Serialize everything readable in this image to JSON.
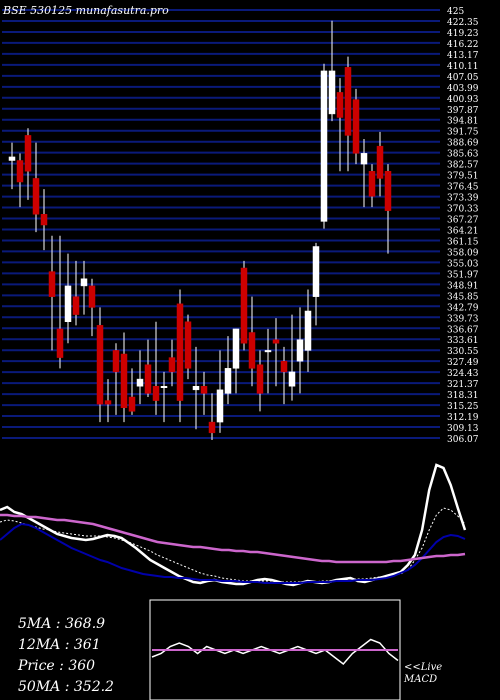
{
  "title": "BSE 530125 munafasutra.pro",
  "indicators": {
    "ma5": "5MA : 368.9",
    "ma12": "12MA : 361",
    "price": "Price   : 360",
    "ma50": "50MA : 352.2"
  },
  "macd_label": {
    "line1": "<<Live",
    "line2": "MACD"
  },
  "colors": {
    "up": "#ffffff",
    "down": "#cc0000",
    "grid": "#0a1a7a",
    "macd": "#0000aa",
    "ma_long": "#cc66cc"
  },
  "chart_data": [
    {
      "type": "candlestick",
      "title": "BSE 530125 munafasutra.pro",
      "ylim": [
        305,
        425
      ],
      "y_tick_labels": [
        "425",
        "422.35",
        "419.23",
        "416.22",
        "413.17",
        "410.11",
        "407.05",
        "403.99",
        "400.93",
        "397.87",
        "394.81",
        "391.75",
        "388.69",
        "385.63",
        "382.57",
        "379.51",
        "376.45",
        "373.39",
        "370.33",
        "367.27",
        "364.21",
        "361.15",
        "358.09",
        "355.03",
        "351.97",
        "348.91",
        "345.85",
        "342.79",
        "339.73",
        "336.67",
        "333.61",
        "330.55",
        "327.49",
        "324.43",
        "321.37",
        "318.31",
        "315.25",
        "312.19",
        "309.13",
        "306.07"
      ],
      "candles": [
        {
          "o": 383,
          "h": 388,
          "l": 375,
          "c": 384
        },
        {
          "o": 383,
          "h": 385,
          "l": 370,
          "c": 377
        },
        {
          "o": 390,
          "h": 392,
          "l": 372,
          "c": 380
        },
        {
          "o": 378,
          "h": 388,
          "l": 363,
          "c": 368
        },
        {
          "o": 368,
          "h": 375,
          "l": 358,
          "c": 365
        },
        {
          "o": 352,
          "h": 362,
          "l": 330,
          "c": 345
        },
        {
          "o": 336,
          "h": 362,
          "l": 325,
          "c": 328
        },
        {
          "o": 338,
          "h": 357,
          "l": 332,
          "c": 348
        },
        {
          "o": 345,
          "h": 355,
          "l": 337,
          "c": 340
        },
        {
          "o": 348,
          "h": 355,
          "l": 340,
          "c": 350
        },
        {
          "o": 348,
          "h": 350,
          "l": 334,
          "c": 342
        },
        {
          "o": 337,
          "h": 342,
          "l": 310,
          "c": 315
        },
        {
          "o": 316,
          "h": 322,
          "l": 310,
          "c": 315
        },
        {
          "o": 330,
          "h": 332,
          "l": 312,
          "c": 324
        },
        {
          "o": 329,
          "h": 335,
          "l": 310,
          "c": 314
        },
        {
          "o": 317,
          "h": 325,
          "l": 312,
          "c": 313
        },
        {
          "o": 320,
          "h": 330,
          "l": 315,
          "c": 322
        },
        {
          "o": 326,
          "h": 333,
          "l": 317,
          "c": 318
        },
        {
          "o": 320,
          "h": 338,
          "l": 312,
          "c": 316
        },
        {
          "o": 320,
          "h": 324,
          "l": 310,
          "c": 320
        },
        {
          "o": 328,
          "h": 333,
          "l": 320,
          "c": 324
        },
        {
          "o": 343,
          "h": 347,
          "l": 310,
          "c": 316
        },
        {
          "o": 338,
          "h": 340,
          "l": 322,
          "c": 325
        },
        {
          "o": 319,
          "h": 331,
          "l": 308,
          "c": 320
        },
        {
          "o": 320,
          "h": 324,
          "l": 312,
          "c": 318
        },
        {
          "o": 310,
          "h": 318,
          "l": 305,
          "c": 307
        },
        {
          "o": 310,
          "h": 330,
          "l": 307,
          "c": 319
        },
        {
          "o": 318,
          "h": 334,
          "l": 315,
          "c": 325
        },
        {
          "o": 325,
          "h": 336,
          "l": 318,
          "c": 336
        },
        {
          "o": 353,
          "h": 355,
          "l": 330,
          "c": 332
        },
        {
          "o": 335,
          "h": 345,
          "l": 320,
          "c": 325
        },
        {
          "o": 326,
          "h": 330,
          "l": 313,
          "c": 318
        },
        {
          "o": 330,
          "h": 336,
          "l": 318,
          "c": 330
        },
        {
          "o": 333,
          "h": 339,
          "l": 320,
          "c": 332
        },
        {
          "o": 327,
          "h": 331,
          "l": 315,
          "c": 324
        },
        {
          "o": 320,
          "h": 340,
          "l": 316,
          "c": 324
        },
        {
          "o": 327,
          "h": 342,
          "l": 318,
          "c": 333
        },
        {
          "o": 330,
          "h": 347,
          "l": 324,
          "c": 341
        },
        {
          "o": 345,
          "h": 360,
          "l": 337,
          "c": 359
        },
        {
          "o": 366,
          "h": 410,
          "l": 364,
          "c": 408
        },
        {
          "o": 396,
          "h": 422,
          "l": 394,
          "c": 408
        },
        {
          "o": 402,
          "h": 406,
          "l": 380,
          "c": 395
        },
        {
          "o": 409,
          "h": 412,
          "l": 380,
          "c": 390
        },
        {
          "o": 400,
          "h": 403,
          "l": 382,
          "c": 385
        },
        {
          "o": 382,
          "h": 389,
          "l": 370,
          "c": 385
        },
        {
          "o": 380,
          "h": 382,
          "l": 370,
          "c": 373
        },
        {
          "o": 387,
          "h": 391,
          "l": 373,
          "c": 378
        },
        {
          "o": 380,
          "h": 382,
          "l": 357,
          "c": 369
        }
      ]
    },
    {
      "type": "line",
      "title": "",
      "x": [
        0,
        1,
        2,
        3,
        4,
        5,
        6,
        7,
        8,
        9,
        10,
        11,
        12,
        13,
        14,
        15,
        16,
        17,
        18,
        19,
        20,
        21,
        22,
        23,
        24,
        25,
        26,
        27,
        28,
        29,
        30,
        31,
        32,
        33,
        34,
        35,
        36,
        37,
        38,
        39,
        40,
        41,
        42,
        43,
        44,
        45,
        46,
        47,
        48,
        49,
        50,
        51,
        52,
        53,
        54,
        55,
        56,
        57,
        58,
        59,
        60,
        61,
        62,
        63,
        64,
        65
      ],
      "series": [
        {
          "values": [
            60,
            63,
            58,
            56,
            52,
            48,
            44,
            40,
            36,
            34,
            32,
            31,
            30,
            31,
            33,
            35,
            34,
            32,
            27,
            22,
            16,
            10,
            6,
            2,
            -2,
            -6,
            -9,
            -12,
            -13,
            -11,
            -10,
            -12,
            -13,
            -14,
            -14,
            -12,
            -10,
            -9,
            -10,
            -12,
            -14,
            -15,
            -13,
            -11,
            -12,
            -13,
            -12,
            -10,
            -9,
            -8,
            -11,
            -12,
            -10,
            -8,
            -6,
            -4,
            -2,
            5,
            15,
            40,
            80,
            105,
            102,
            85,
            62,
            40
          ]
        },
        {
          "values": [
            48,
            50,
            49,
            47,
            45,
            43,
            41,
            40,
            38,
            37,
            36,
            35,
            34,
            34,
            34,
            33,
            32,
            30,
            28,
            25,
            22,
            19,
            15,
            12,
            9,
            6,
            3,
            0,
            -3,
            -5,
            -6,
            -8,
            -9,
            -10,
            -11,
            -11,
            -11,
            -11,
            -11,
            -12,
            -12,
            -12,
            -12,
            -12,
            -12,
            -11,
            -11,
            -10,
            -10,
            -9,
            -9,
            -9,
            -8,
            -7,
            -6,
            -5,
            -4,
            0,
            10,
            22,
            40,
            55,
            62,
            60,
            54,
            46
          ]
        },
        {
          "values": [
            30,
            36,
            42,
            46,
            45,
            42,
            38,
            34,
            30,
            26,
            22,
            19,
            16,
            13,
            10,
            8,
            5,
            2,
            0,
            -2,
            -4,
            -5,
            -6,
            -7,
            -7,
            -8,
            -8,
            -9,
            -10,
            -10,
            -10,
            -11,
            -11,
            -11,
            -12,
            -12,
            -12,
            -13,
            -13,
            -13,
            -13,
            -13,
            -13,
            -12,
            -12,
            -12,
            -12,
            -11,
            -11,
            -11,
            -10,
            -10,
            -10,
            -9,
            -8,
            -6,
            -3,
            0,
            5,
            12,
            20,
            28,
            33,
            35,
            34,
            31
          ]
        },
        {
          "values": [
            55,
            55,
            54,
            54,
            53,
            53,
            52,
            51,
            50,
            50,
            49,
            48,
            47,
            46,
            44,
            42,
            40,
            38,
            36,
            34,
            32,
            30,
            28,
            27,
            26,
            25,
            24,
            23,
            23,
            22,
            21,
            20,
            20,
            19,
            19,
            18,
            18,
            17,
            16,
            15,
            14,
            13,
            12,
            11,
            10,
            9,
            9,
            8,
            8,
            8,
            8,
            8,
            8,
            8,
            8,
            9,
            9,
            10,
            11,
            12,
            13,
            14,
            14,
            15,
            15,
            16
          ]
        }
      ]
    },
    {
      "type": "line",
      "title": "",
      "series": [
        {
          "values": [
            -2,
            -1,
            1,
            2,
            1,
            -1,
            1,
            0,
            -1,
            0,
            -1,
            0,
            1,
            0,
            -1,
            0,
            1,
            0,
            -1,
            0,
            -2,
            -4,
            -1,
            1,
            3,
            2,
            -1,
            -3
          ]
        },
        {
          "values": [
            0,
            0,
            0,
            0,
            0,
            0,
            0,
            0,
            0,
            0,
            0,
            0,
            0,
            0,
            0,
            0,
            0,
            0,
            0,
            0,
            0,
            0,
            0,
            0,
            0,
            0,
            0,
            0
          ]
        }
      ]
    }
  ]
}
